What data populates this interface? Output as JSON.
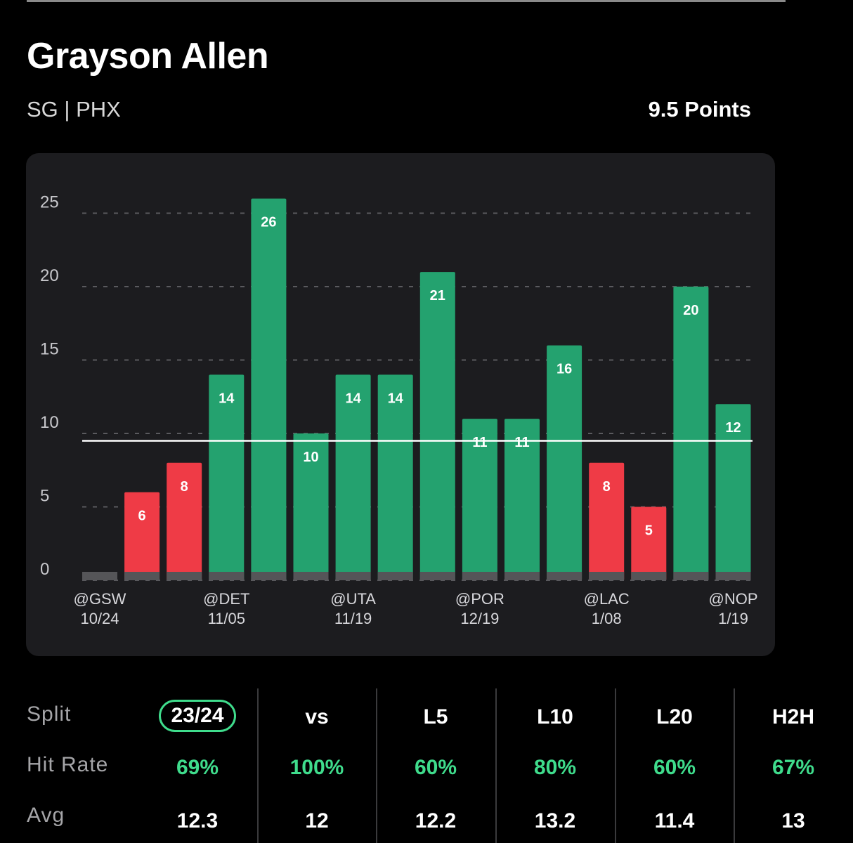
{
  "player": {
    "name": "Grayson Allen",
    "meta": "SG | PHX",
    "prop": "9.5 Points"
  },
  "colors": {
    "over": "#24a26f",
    "under": "#ef3b46",
    "no_value": "#555558",
    "hit_rate": "#3fdc8c"
  },
  "chart_data": {
    "type": "bar",
    "line": 9.5,
    "ylim": [
      0,
      26
    ],
    "yticks": [
      0,
      5,
      10,
      15,
      20,
      25
    ],
    "grid": "horizontal-dashed",
    "categories": [
      "@GSW 10/24",
      "",
      "",
      "@DET 11/05",
      "",
      "",
      "@UTA 11/19",
      "",
      "",
      "@POR 12/19",
      "",
      "",
      "@LAC 1/08",
      "",
      "",
      "@NOP 1/19"
    ],
    "x_labels": [
      {
        "index": 0,
        "opponent": "@GSW",
        "date": "10/24"
      },
      {
        "index": 3,
        "opponent": "@DET",
        "date": "11/05"
      },
      {
        "index": 6,
        "opponent": "@UTA",
        "date": "11/19"
      },
      {
        "index": 9,
        "opponent": "@POR",
        "date": "12/19"
      },
      {
        "index": 12,
        "opponent": "@LAC",
        "date": "1/08"
      },
      {
        "index": 15,
        "opponent": "@NOP",
        "date": "1/19"
      }
    ],
    "values": [
      0,
      6,
      8,
      14,
      26,
      10,
      14,
      14,
      21,
      11,
      11,
      16,
      8,
      5,
      20,
      12
    ],
    "value_labels": [
      "",
      "6",
      "8",
      "14",
      "26",
      "10",
      "14",
      "14",
      "21",
      "11",
      "11",
      "16",
      "8",
      "5",
      "20",
      "12"
    ]
  },
  "splits": {
    "row_labels": {
      "split": "Split",
      "hit_rate": "Hit Rate",
      "avg": "Avg"
    },
    "columns": [
      {
        "split": "23/24",
        "hit_rate": "69%",
        "avg": "12.3"
      },
      {
        "split": "vs",
        "hit_rate": "100%",
        "avg": "12"
      },
      {
        "split": "L5",
        "hit_rate": "60%",
        "avg": "12.2"
      },
      {
        "split": "L10",
        "hit_rate": "80%",
        "avg": "13.2"
      },
      {
        "split": "L20",
        "hit_rate": "60%",
        "avg": "11.4"
      },
      {
        "split": "H2H",
        "hit_rate": "67%",
        "avg": "13"
      }
    ]
  }
}
